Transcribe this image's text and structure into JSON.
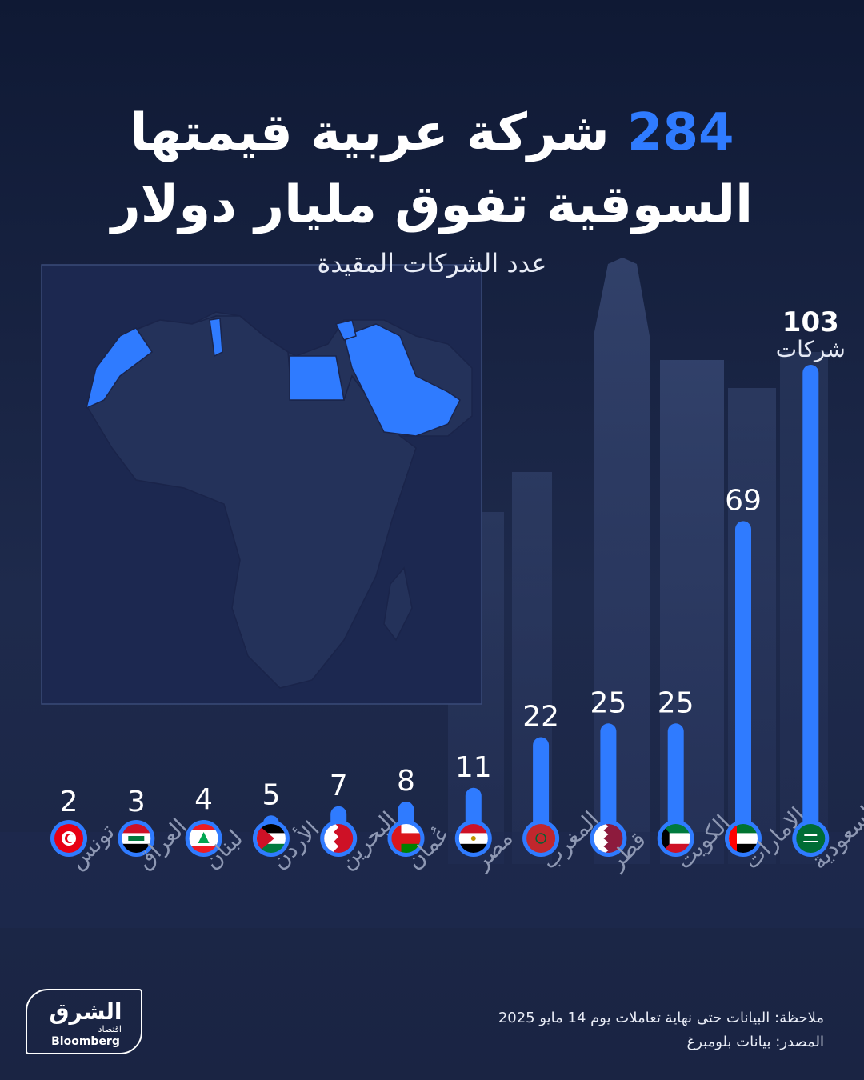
{
  "title": {
    "number": "284",
    "line1_rest": "شركة عربية قيمتها",
    "line2": "السوقية تفوق مليار دولار"
  },
  "subtitle": "عدد الشركات المقيدة",
  "chart_data": {
    "type": "bar",
    "title": "284 شركة عربية قيمتها السوقية تفوق مليار دولار",
    "ylabel": "عدد الشركات المقيدة",
    "categories": [
      "تونس",
      "العراق",
      "لبنان",
      "الأردن",
      "البحرين",
      "عُمان",
      "مصر",
      "المغرب",
      "قطر",
      "الكويت",
      "الإمارات",
      "السعودية"
    ],
    "values": [
      2,
      3,
      4,
      5,
      7,
      8,
      11,
      22,
      25,
      25,
      69,
      103
    ],
    "value_labels": [
      "2",
      "3",
      "4",
      "5",
      "7",
      "8",
      "11",
      "22",
      "25",
      "25",
      "69",
      "103"
    ],
    "top_unit_label": "شركات",
    "ylim": [
      0,
      103
    ]
  },
  "colors": {
    "background": "#1b2644",
    "accent": "#2f7bff",
    "map_land": "#27345a",
    "map_highlight": "#2f7bff"
  },
  "icons": {
    "map": "arab-world-map-icon",
    "flags": [
      "tunisia-flag-icon",
      "iraq-flag-icon",
      "lebanon-flag-icon",
      "jordan-flag-icon",
      "bahrain-flag-icon",
      "oman-flag-icon",
      "egypt-flag-icon",
      "morocco-flag-icon",
      "qatar-flag-icon",
      "kuwait-flag-icon",
      "uae-flag-icon",
      "saudi-flag-icon"
    ]
  },
  "logo": {
    "main": "الشرق",
    "sub": "اقتصاد",
    "brand": "Bloomberg"
  },
  "note": "ملاحظة: البيانات حتى نهاية تعاملات يوم 14 مايو 2025",
  "source": "المصدر: بيانات بلومبرغ"
}
